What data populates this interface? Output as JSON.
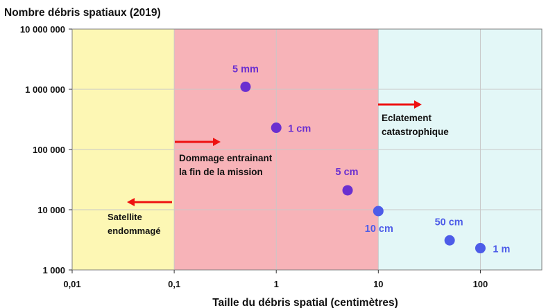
{
  "chart_data": {
    "type": "scatter",
    "title": "Nombre débris spatiaux (2019)",
    "xlabel": "Taille du débris spatial (centimètres)",
    "ylabel": "",
    "x_scale": "log",
    "y_scale": "log",
    "xlim": [
      0.01,
      400
    ],
    "ylim": [
      1000,
      10000000
    ],
    "x_ticks": [
      0.01,
      0.1,
      1,
      10,
      100
    ],
    "x_tick_labels": [
      "0,01",
      "0,1",
      "1",
      "10",
      "100"
    ],
    "y_ticks": [
      1000,
      10000,
      100000,
      1000000,
      10000000
    ],
    "y_tick_labels": [
      "1 000",
      "10 000",
      "100 000",
      "1 000 000",
      "10 000 000"
    ],
    "grid": true,
    "zones": [
      {
        "x_from": 0.01,
        "x_to": 0.1,
        "color": "#fdf7b4",
        "label_lines": [
          "Satellite",
          "endommagé"
        ]
      },
      {
        "x_from": 0.1,
        "x_to": 10,
        "color": "#f7b3b8",
        "label_lines": [
          "Dommage entrainant",
          "la fin de la mission"
        ]
      },
      {
        "x_from": 10,
        "x_to": 400,
        "color": "#e3f7f7",
        "label_lines": [
          "Eclatement",
          "catastrophique"
        ]
      }
    ],
    "arrows": [
      {
        "direction": "left",
        "color": "#ee1111"
      },
      {
        "direction": "right",
        "color": "#ee1111"
      },
      {
        "direction": "right",
        "color": "#ee1111"
      }
    ],
    "points": [
      {
        "x": 0.5,
        "y": 1100000,
        "label": "5 mm",
        "color": "#6a2fd0"
      },
      {
        "x": 1,
        "y": 230000,
        "label": "1 cm",
        "color": "#6a2fd0"
      },
      {
        "x": 5,
        "y": 21000,
        "label": "5 cm",
        "color": "#6a2fd0"
      },
      {
        "x": 10,
        "y": 9500,
        "label": "10 cm",
        "color": "#4d5ce8"
      },
      {
        "x": 50,
        "y": 3100,
        "label": "50 cm",
        "color": "#4d5ce8"
      },
      {
        "x": 100,
        "y": 2300,
        "label": "1 m",
        "color": "#4d5ce8"
      }
    ]
  }
}
